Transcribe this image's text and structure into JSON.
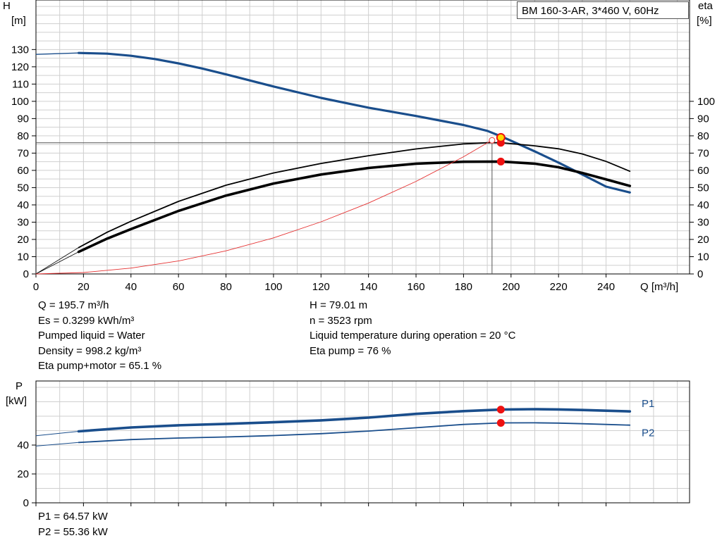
{
  "chart_data": [
    {
      "type": "line",
      "title": "BM 160-3-AR, 3*460 V, 60Hz",
      "xlabel": "Q [m³/h]",
      "ylabel_left": "H",
      "ylabel_left_unit": "[m]",
      "ylabel_right": "eta",
      "ylabel_right_unit": "[%]",
      "xlim": [
        0,
        250
      ],
      "ylim_left": [
        0,
        140
      ],
      "ylim_right": [
        0,
        140
      ],
      "x_ticks": [
        0,
        20,
        40,
        60,
        80,
        100,
        120,
        140,
        160,
        180,
        200,
        220,
        240
      ],
      "y_ticks_left": [
        0,
        10,
        20,
        30,
        40,
        50,
        60,
        70,
        80,
        90,
        100,
        110,
        120,
        130
      ],
      "y_ticks_right": [
        0,
        10,
        20,
        30,
        40,
        50,
        60,
        70,
        80,
        90,
        100
      ],
      "grid": true,
      "colors": {
        "head": "#1a4e8c",
        "eta": "#000000",
        "system": "#e53030",
        "grid": "#cfcfcf",
        "marker": "#ee1111",
        "marker_highlight": "#ffd800"
      },
      "series": [
        {
          "role": "head",
          "x": [
            18,
            30,
            40,
            50,
            60,
            70,
            80,
            100,
            120,
            140,
            160,
            180,
            190,
            196,
            200,
            210,
            220,
            230,
            240,
            250
          ],
          "y": [
            128,
            127.6,
            126.4,
            124.5,
            122,
            119,
            115.6,
            108.6,
            102,
            96.3,
            91.5,
            86.3,
            82.9,
            79.6,
            77.2,
            71,
            64.5,
            57.6,
            50.6,
            47.2
          ],
          "extrapolated": {
            "x": [
              0,
              18
            ],
            "y": [
              127.2,
              128
            ]
          }
        },
        {
          "role": "eta-pump",
          "x": [
            18,
            30,
            40,
            60,
            80,
            100,
            120,
            140,
            160,
            180,
            190,
            196,
            210,
            220,
            230,
            240,
            250
          ],
          "y": [
            15.3,
            24.2,
            30.5,
            42,
            51.4,
            58.5,
            64,
            68.5,
            72.4,
            75.3,
            76,
            76,
            74.2,
            72.5,
            69.5,
            65.2,
            59.5
          ],
          "extrapolated": {
            "x": [
              0,
              18
            ],
            "y": [
              0,
              15.3
            ]
          }
        },
        {
          "role": "eta-pump-motor",
          "x": [
            18,
            30,
            40,
            60,
            80,
            100,
            120,
            140,
            160,
            180,
            196,
            210,
            220,
            230,
            240,
            250
          ],
          "y": [
            12.8,
            20.5,
            26,
            36.5,
            45.4,
            52.4,
            57.6,
            61.4,
            63.9,
            65,
            65.1,
            63.9,
            61.8,
            58.5,
            54.8,
            51
          ],
          "extrapolated": {
            "x": [
              0,
              18
            ],
            "y": [
              0,
              12.8
            ]
          }
        },
        {
          "role": "system-curve",
          "x": [
            0,
            20,
            40,
            60,
            80,
            100,
            120,
            140,
            160,
            180,
            192
          ],
          "y": [
            0,
            0.8,
            3.4,
            7.5,
            13.4,
            20.9,
            30.2,
            41.1,
            53.6,
            67.9,
            77.5
          ]
        }
      ],
      "operating_point": {
        "Q": 195.7,
        "H": 79.01,
        "eta_pump": 76,
        "eta_pump_motor": 65.1
      },
      "guide_point": {
        "Q": 192,
        "eta": 76
      },
      "info_left": [
        "Q = 195.7 m³/h",
        "Es = 0.3299 kWh/m³",
        "Pumped liquid = Water",
        "Density = 998.2 kg/m³",
        "Eta pump+motor = 65.1 %"
      ],
      "info_right": [
        "H = 79.01 m",
        "n = 3523 rpm",
        "Liquid temperature during operation = 20 °C",
        "Eta pump = 76 %"
      ]
    },
    {
      "type": "line",
      "xlabel": "",
      "ylabel": "P",
      "ylabel_unit": "[kW]",
      "xlim": [
        0,
        250
      ],
      "ylim": [
        0,
        80
      ],
      "x_ticks": [
        0,
        20,
        40,
        60,
        80,
        100,
        120,
        140,
        160,
        180,
        200,
        220,
        240
      ],
      "y_ticks": [
        0,
        20,
        40
      ],
      "grid": true,
      "colors": {
        "line": "#1a4e8c",
        "marker": "#ee1111"
      },
      "series": [
        {
          "name": "P1",
          "x": [
            18,
            40,
            60,
            80,
            100,
            120,
            140,
            160,
            180,
            196,
            210,
            220,
            230,
            240,
            250
          ],
          "y": [
            49.5,
            52.2,
            53.7,
            54.7,
            55.8,
            57.1,
            59,
            61.6,
            63.5,
            64.57,
            64.9,
            64.7,
            64.3,
            63.8,
            63.3
          ],
          "extrapolated": {
            "x": [
              0,
              18
            ],
            "y": [
              46.5,
              49.5
            ]
          }
        },
        {
          "name": "P2",
          "x": [
            18,
            40,
            60,
            80,
            100,
            120,
            140,
            160,
            180,
            196,
            210,
            220,
            230,
            240,
            250
          ],
          "y": [
            41.8,
            43.8,
            44.9,
            45.6,
            46.6,
            47.9,
            49.7,
            52,
            54.3,
            55.36,
            55.4,
            55.2,
            54.8,
            54.3,
            53.8
          ],
          "extrapolated": {
            "x": [
              0,
              18
            ],
            "y": [
              39.3,
              41.8
            ]
          }
        }
      ],
      "operating_point": {
        "Q": 195.7,
        "P1": 64.57,
        "P2": 55.36
      },
      "info": [
        "P1 = 64.57 kW",
        "P2 = 55.36 kW"
      ]
    }
  ]
}
